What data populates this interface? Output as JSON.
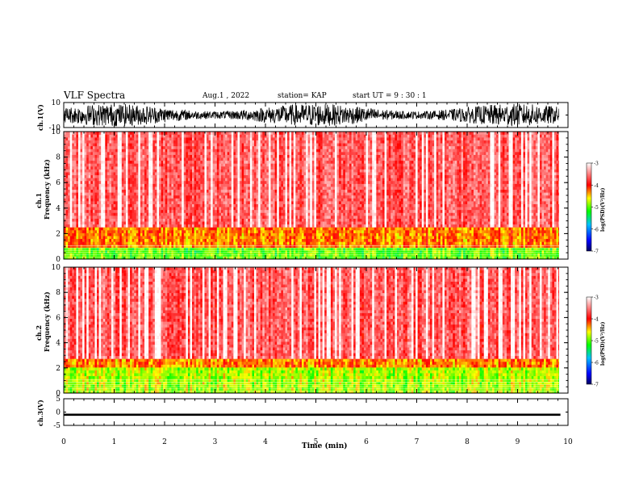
{
  "header": {
    "title": "VLF Spectra",
    "date": "Aug.1  , 2022",
    "station": "station= KAP",
    "start": "start  UT  =   9 : 30 : 1"
  },
  "colors": {
    "spec_low": "#ff0000",
    "spec_high": "#ffffff",
    "band_yellow": "#ffd000",
    "band_green": "#00d000",
    "trace": "#000000"
  },
  "chart_data": [
    {
      "type": "line",
      "name": "ch1-waveform",
      "ylabel": "ch.1(V)",
      "ylim": [
        -10,
        10
      ],
      "yticks": [
        "10",
        "-10"
      ],
      "description_values": "noise-like waveform, mostly between -9 and 9 V"
    },
    {
      "type": "heatmap",
      "name": "ch1-spectrogram",
      "ylabel": "ch.1\nFrequency  (kHz)",
      "ylabel_lines": [
        "ch.1",
        "Frequency  (kHz)"
      ],
      "ylim": [
        0,
        10
      ],
      "yticks": [
        "0",
        "2",
        "4",
        "6",
        "8",
        "10"
      ],
      "xlim": [
        0,
        9.85
      ],
      "colorbar": {
        "label": "log(PSD)(V²/Hz)",
        "ticks": [
          "-3",
          "-4",
          "-5",
          "-6",
          "-7"
        ],
        "range": [
          -7,
          -3
        ]
      },
      "bands": [
        {
          "from_khz": 0.0,
          "to_khz": 1.0,
          "level": -5.0
        },
        {
          "from_khz": 1.0,
          "to_khz": 2.5,
          "level": -4.3
        },
        {
          "from_khz": 2.5,
          "to_khz": 10.0,
          "level": -3.6
        }
      ]
    },
    {
      "type": "heatmap",
      "name": "ch2-spectrogram",
      "ylabel_lines": [
        "ch.2",
        "Frequency  (kHz)"
      ],
      "ylim": [
        0,
        10
      ],
      "yticks": [
        "0",
        "2",
        "4",
        "6",
        "8",
        "10"
      ],
      "xlim": [
        0,
        9.85
      ],
      "colorbar": {
        "label": "log(PSD)(V²/Hz)",
        "ticks": [
          "-3",
          "-4",
          "-5",
          "-6",
          "-7"
        ],
        "range": [
          -7,
          -3
        ]
      },
      "bands": [
        {
          "from_khz": 0.0,
          "to_khz": 1.0,
          "level": -4.8
        },
        {
          "from_khz": 1.0,
          "to_khz": 2.0,
          "level": -4.8
        },
        {
          "from_khz": 2.0,
          "to_khz": 2.8,
          "level": -4.3
        },
        {
          "from_khz": 2.8,
          "to_khz": 10.0,
          "level": -3.6
        }
      ]
    },
    {
      "type": "line",
      "name": "ch3-waveform",
      "ylabel": "ch.3(V)",
      "ylim": [
        -5,
        5
      ],
      "yticks": [
        "5",
        "0",
        "-5"
      ],
      "level": -1,
      "level_range": [
        -1.4,
        -0.6
      ]
    }
  ],
  "xaxis": {
    "label": "Time  (min)",
    "ticks": [
      "0",
      "1",
      "2",
      "3",
      "4",
      "5",
      "6",
      "7",
      "8",
      "9",
      "10"
    ],
    "xlim": [
      0,
      10
    ]
  }
}
